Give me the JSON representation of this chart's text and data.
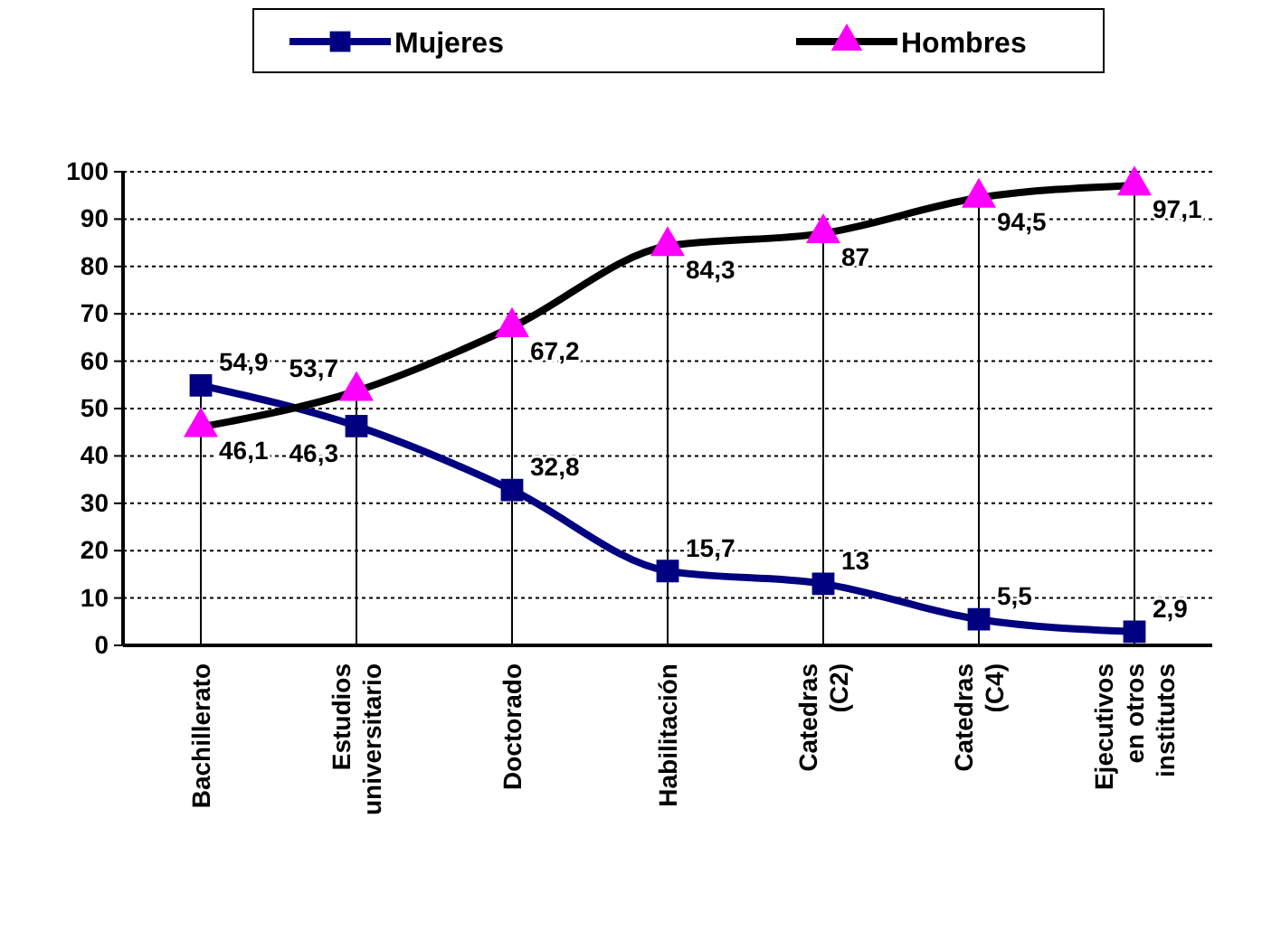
{
  "chart_data": {
    "type": "line",
    "categories": [
      "Bachillerato",
      "Estudios universitario",
      "Doctorado",
      "Habilitación",
      "Catedras (C2)",
      "Catedras (C4)",
      "Ejecutivos en otros institutos"
    ],
    "series": [
      {
        "name": "Mujeres",
        "color": "#000080",
        "marker": "square",
        "values": [
          54.9,
          46.3,
          32.8,
          15.7,
          13,
          5.5,
          2.9
        ],
        "value_labels": [
          "54,9",
          "46,3",
          "32,8",
          "15,7",
          "13",
          "5,5",
          "2,9"
        ]
      },
      {
        "name": "Hombres",
        "color": "#000000",
        "marker": "triangle",
        "colors": [
          "#ff00ff",
          "#ff00ff",
          "#ff00ff",
          "#ff00ff",
          "#ff00ff",
          "#ff00ff",
          "#ff00ff"
        ],
        "values": [
          46.1,
          53.7,
          67.2,
          84.3,
          87,
          94.5,
          97.1
        ],
        "value_labels": [
          "46,1",
          "53,7",
          "67,2",
          "84,3",
          "87",
          "94,5",
          "97,1"
        ]
      }
    ],
    "ylim": [
      0,
      100
    ],
    "yticks": [
      0,
      10,
      20,
      30,
      40,
      50,
      60,
      70,
      80,
      90,
      100
    ],
    "grid": true,
    "legend": "top"
  }
}
